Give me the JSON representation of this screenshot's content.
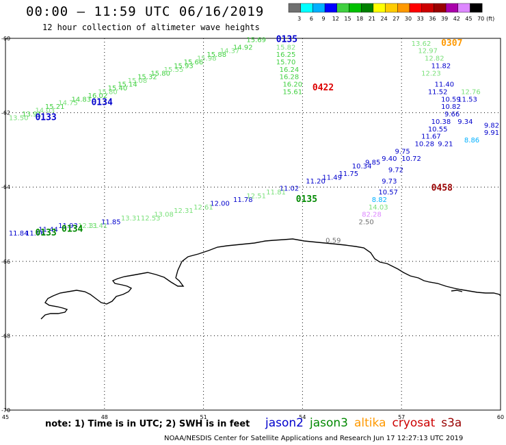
{
  "title": "00:00 – 11:59 UTC 06/16/2019",
  "subtitle": "12 hour collection of altimeter wave heights",
  "note": "note: 1) Time is in UTC; 2) SWH is in feet",
  "footer": "NOAA/NESDIS Center for Satellite Applications and Research   Jun 17 12:27:13 UTC 2019",
  "color_scale": {
    "unit": "(ft)",
    "labels": [
      "3",
      "6",
      "9",
      "12",
      "15",
      "18",
      "21",
      "24",
      "27",
      "30",
      "33",
      "36",
      "39",
      "42",
      "45",
      "70"
    ],
    "colors": [
      "#707070",
      "#00ffff",
      "#00b0ff",
      "#0000ff",
      "#40d040",
      "#00c000",
      "#008000",
      "#ffff00",
      "#ffcc00",
      "#ff9900",
      "#ff0000",
      "#cc0000",
      "#990000",
      "#aa00aa",
      "#dd88ff",
      "#000000"
    ]
  },
  "legend": [
    {
      "name": "jason2",
      "color": "#0000cc"
    },
    {
      "name": "jason3",
      "color": "#008800"
    },
    {
      "name": "altika",
      "color": "#ff9900"
    },
    {
      "name": "cryosat",
      "color": "#cc0000"
    },
    {
      "name": "s3a",
      "color": "#990000"
    }
  ],
  "chart_data": {
    "type": "scatter",
    "x_ticks": [
      "45",
      "48",
      "51",
      "54",
      "57",
      "60"
    ],
    "y_ticks": [
      "-60",
      "-62",
      "-64",
      "-66",
      "-68",
      "-70"
    ],
    "xlim": [
      45,
      60
    ],
    "ylim": [
      -70,
      -60
    ],
    "grid": true,
    "pass_labels": [
      {
        "text": "0135",
        "lon": 53.2,
        "lat": -60.1,
        "color": "#0000cc"
      },
      {
        "text": "0133",
        "lon": 45.9,
        "lat": -62.2,
        "color": "#0000cc"
      },
      {
        "text": "0134",
        "lon": 47.6,
        "lat": -61.8,
        "color": "#0000cc"
      },
      {
        "text": "0422",
        "lon": 54.3,
        "lat": -61.4,
        "color": "#dd0000"
      },
      {
        "text": "0307",
        "lon": 58.2,
        "lat": -60.2,
        "color": "#ff9900"
      },
      {
        "text": "0135",
        "lon": 53.8,
        "lat": -64.4,
        "color": "#008800"
      },
      {
        "text": "0458",
        "lon": 57.9,
        "lat": -64.1,
        "color": "#990000"
      },
      {
        "text": "0133",
        "lon": 45.9,
        "lat": -65.3,
        "color": "#008800"
      },
      {
        "text": "0134",
        "lon": 46.7,
        "lat": -65.2,
        "color": "#008800"
      }
    ],
    "wave_heights": [
      {
        "text": "13.50",
        "lon": 45.1,
        "lat": -62.2,
        "color": "#7ae07a"
      },
      {
        "text": "13.91",
        "lon": 45.5,
        "lat": -62.1,
        "color": "#40d040"
      },
      {
        "text": "14.03",
        "lon": 45.9,
        "lat": -62.0,
        "color": "#7ae07a"
      },
      {
        "text": "15.21",
        "lon": 46.2,
        "lat": -61.9,
        "color": "#40d040"
      },
      {
        "text": "14.75",
        "lon": 46.6,
        "lat": -61.8,
        "color": "#7ae07a"
      },
      {
        "text": "14.83",
        "lon": 47.0,
        "lat": -61.7,
        "color": "#40d040"
      },
      {
        "text": "16.02",
        "lon": 47.5,
        "lat": -61.6,
        "color": "#40d040"
      },
      {
        "text": "15.80",
        "lon": 47.8,
        "lat": -61.5,
        "color": "#7ae07a"
      },
      {
        "text": "15.40",
        "lon": 48.1,
        "lat": -61.4,
        "color": "#40d040"
      },
      {
        "text": "15.14",
        "lon": 48.4,
        "lat": -61.3,
        "color": "#40d040"
      },
      {
        "text": "15.08",
        "lon": 48.7,
        "lat": -61.2,
        "color": "#7ae07a"
      },
      {
        "text": "15.32",
        "lon": 49.0,
        "lat": -61.1,
        "color": "#40d040"
      },
      {
        "text": "15.80",
        "lon": 49.4,
        "lat": -61.0,
        "color": "#40d040"
      },
      {
        "text": "15.55",
        "lon": 49.8,
        "lat": -60.9,
        "color": "#7ae07a"
      },
      {
        "text": "15.93",
        "lon": 50.1,
        "lat": -60.8,
        "color": "#40d040"
      },
      {
        "text": "15.66",
        "lon": 50.4,
        "lat": -60.7,
        "color": "#40d040"
      },
      {
        "text": "15.98",
        "lon": 50.8,
        "lat": -60.6,
        "color": "#7ae07a"
      },
      {
        "text": "15.88",
        "lon": 51.1,
        "lat": -60.5,
        "color": "#40d040"
      },
      {
        "text": "14.37",
        "lon": 51.5,
        "lat": -60.4,
        "color": "#7ae07a"
      },
      {
        "text": "14.92",
        "lon": 51.9,
        "lat": -60.3,
        "color": "#40d040"
      },
      {
        "text": "15.69",
        "lon": 52.3,
        "lat": -60.1,
        "color": "#40d040"
      },
      {
        "text": "15.82",
        "lon": 53.2,
        "lat": -60.3,
        "color": "#7ae07a"
      },
      {
        "text": "16.25",
        "lon": 53.2,
        "lat": -60.5,
        "color": "#40d040"
      },
      {
        "text": "15.70",
        "lon": 53.2,
        "lat": -60.7,
        "color": "#40d040"
      },
      {
        "text": "16.24",
        "lon": 53.3,
        "lat": -60.9,
        "color": "#40d040"
      },
      {
        "text": "16.28",
        "lon": 53.3,
        "lat": -61.1,
        "color": "#40d040"
      },
      {
        "text": "16.20",
        "lon": 53.4,
        "lat": -61.3,
        "color": "#40d040"
      },
      {
        "text": "15.61",
        "lon": 53.4,
        "lat": -61.5,
        "color": "#40d040"
      },
      {
        "text": "13.62",
        "lon": 57.3,
        "lat": -60.2,
        "color": "#7ae07a"
      },
      {
        "text": "12.97",
        "lon": 57.5,
        "lat": -60.4,
        "color": "#7ae07a"
      },
      {
        "text": "12.82",
        "lon": 57.7,
        "lat": -60.6,
        "color": "#7ae07a"
      },
      {
        "text": "11.82",
        "lon": 57.9,
        "lat": -60.8,
        "color": "#0000cc"
      },
      {
        "text": "12.23",
        "lon": 57.6,
        "lat": -61.0,
        "color": "#7ae07a"
      },
      {
        "text": "11.40",
        "lon": 58.0,
        "lat": -61.3,
        "color": "#0000cc"
      },
      {
        "text": "11.52",
        "lon": 57.8,
        "lat": -61.5,
        "color": "#0000cc"
      },
      {
        "text": "12.76",
        "lon": 58.8,
        "lat": -61.5,
        "color": "#7ae07a"
      },
      {
        "text": "10.59",
        "lon": 58.2,
        "lat": -61.7,
        "color": "#0000cc"
      },
      {
        "text": "11.53",
        "lon": 58.7,
        "lat": -61.7,
        "color": "#0000cc"
      },
      {
        "text": "10.82",
        "lon": 58.2,
        "lat": -61.9,
        "color": "#0000cc"
      },
      {
        "text": "9.66",
        "lon": 58.3,
        "lat": -62.1,
        "color": "#0000cc"
      },
      {
        "text": "10.38",
        "lon": 57.9,
        "lat": -62.3,
        "color": "#0000cc"
      },
      {
        "text": "9.34",
        "lon": 58.7,
        "lat": -62.3,
        "color": "#0000cc"
      },
      {
        "text": "10.55",
        "lon": 57.8,
        "lat": -62.5,
        "color": "#0000cc"
      },
      {
        "text": "9.82",
        "lon": 59.5,
        "lat": -62.4,
        "color": "#0000cc"
      },
      {
        "text": "11.67",
        "lon": 57.6,
        "lat": -62.7,
        "color": "#0000cc"
      },
      {
        "text": "9.91",
        "lon": 59.5,
        "lat": -62.6,
        "color": "#0000cc"
      },
      {
        "text": "10.28",
        "lon": 57.4,
        "lat": -62.9,
        "color": "#0000cc"
      },
      {
        "text": "8.86",
        "lon": 58.9,
        "lat": -62.8,
        "color": "#00b0ff"
      },
      {
        "text": "9.21",
        "lon": 58.1,
        "lat": -62.9,
        "color": "#0000cc"
      },
      {
        "text": "9.75",
        "lon": 56.8,
        "lat": -63.1,
        "color": "#0000cc"
      },
      {
        "text": "10.72",
        "lon": 57.0,
        "lat": -63.3,
        "color": "#0000cc"
      },
      {
        "text": "9.40",
        "lon": 56.4,
        "lat": -63.3,
        "color": "#0000cc"
      },
      {
        "text": "9.85",
        "lon": 55.9,
        "lat": -63.4,
        "color": "#0000cc"
      },
      {
        "text": "10.34",
        "lon": 55.5,
        "lat": -63.5,
        "color": "#0000cc"
      },
      {
        "text": "11.75",
        "lon": 55.1,
        "lat": -63.7,
        "color": "#0000cc"
      },
      {
        "text": "11.49",
        "lon": 54.6,
        "lat": -63.8,
        "color": "#0000cc"
      },
      {
        "text": "11.20",
        "lon": 54.1,
        "lat": -63.9,
        "color": "#0000cc"
      },
      {
        "text": "9.72",
        "lon": 56.6,
        "lat": -63.6,
        "color": "#0000cc"
      },
      {
        "text": "9.73",
        "lon": 56.4,
        "lat": -63.9,
        "color": "#0000cc"
      },
      {
        "text": "10.57",
        "lon": 56.3,
        "lat": -64.2,
        "color": "#0000cc"
      },
      {
        "text": "8.82",
        "lon": 56.1,
        "lat": -64.4,
        "color": "#00b0ff"
      },
      {
        "text": "14.03",
        "lon": 56.0,
        "lat": -64.6,
        "color": "#7ae07a"
      },
      {
        "text": "82.28",
        "lon": 55.8,
        "lat": -64.8,
        "color": "#dd88ff"
      },
      {
        "text": "2.50",
        "lon": 55.7,
        "lat": -65.0,
        "color": "#707070"
      },
      {
        "text": "0.59",
        "lon": 54.7,
        "lat": -65.5,
        "color": "#707070"
      },
      {
        "text": "11.02",
        "lon": 53.3,
        "lat": -64.1,
        "color": "#0000cc"
      },
      {
        "text": "11.81",
        "lon": 52.9,
        "lat": -64.2,
        "color": "#7ae07a"
      },
      {
        "text": "11.78",
        "lon": 51.9,
        "lat": -64.4,
        "color": "#0000cc"
      },
      {
        "text": "12.51",
        "lon": 52.3,
        "lat": -64.3,
        "color": "#7ae07a"
      },
      {
        "text": "12.00",
        "lon": 51.2,
        "lat": -64.5,
        "color": "#0000cc"
      },
      {
        "text": "12.61",
        "lon": 50.7,
        "lat": -64.6,
        "color": "#7ae07a"
      },
      {
        "text": "12.31",
        "lon": 50.1,
        "lat": -64.7,
        "color": "#7ae07a"
      },
      {
        "text": "13.08",
        "lon": 49.5,
        "lat": -64.8,
        "color": "#7ae07a"
      },
      {
        "text": "12.53",
        "lon": 49.1,
        "lat": -64.9,
        "color": "#7ae07a"
      },
      {
        "text": "13.31",
        "lon": 48.5,
        "lat": -64.9,
        "color": "#7ae07a"
      },
      {
        "text": "11.85",
        "lon": 47.9,
        "lat": -65.0,
        "color": "#0000cc"
      },
      {
        "text": "13.41",
        "lon": 47.5,
        "lat": -65.1,
        "color": "#7ae07a"
      },
      {
        "text": "12.31",
        "lon": 47.2,
        "lat": -65.1,
        "color": "#7ae07a"
      },
      {
        "text": "11.93",
        "lon": 46.6,
        "lat": -65.1,
        "color": "#0000cc"
      },
      {
        "text": "11.84",
        "lon": 45.1,
        "lat": -65.3,
        "color": "#0000cc"
      },
      {
        "text": "11.96",
        "lon": 45.6,
        "lat": -65.3,
        "color": "#0000cc"
      },
      {
        "text": "11.44",
        "lon": 46.0,
        "lat": -65.2,
        "color": "#0000cc"
      }
    ]
  }
}
